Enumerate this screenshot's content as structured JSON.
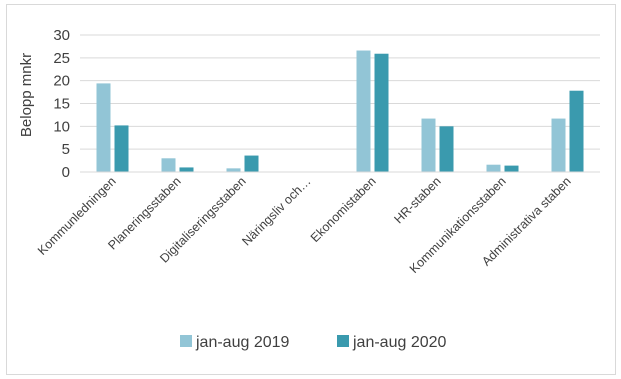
{
  "chart_data": {
    "type": "bar",
    "title": "",
    "xlabel": "",
    "ylabel": "Belopp mnkr",
    "ylim": [
      0,
      30
    ],
    "yticks": [
      0,
      5,
      10,
      15,
      20,
      25,
      30
    ],
    "grid": true,
    "legend_position": "bottom",
    "categories": [
      "Kommunledningen",
      "Planeringsstaben",
      "Digitaliseringsstaben",
      "Näringsliv och…",
      "Ekonomistaben",
      "HR-staben",
      "Kommunikationsstaben",
      "Administrativa staben"
    ],
    "series": [
      {
        "name": "jan-aug 2019",
        "color": "#92C5D6",
        "values": [
          19.4,
          3.0,
          0.8,
          0,
          26.6,
          11.7,
          1.6,
          11.7
        ]
      },
      {
        "name": "jan-aug 2020",
        "color": "#3A9AAE",
        "values": [
          10.2,
          1.0,
          3.6,
          0,
          25.9,
          10.0,
          1.4,
          17.8
        ]
      }
    ]
  }
}
